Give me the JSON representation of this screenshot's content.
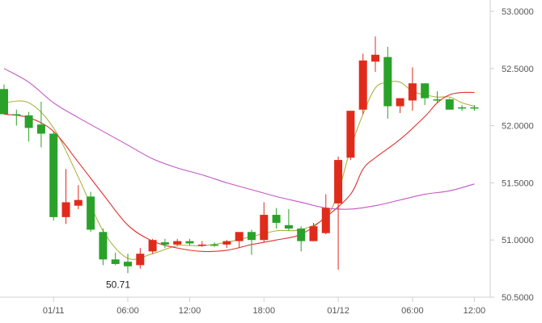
{
  "chart_data": {
    "type": "candlestick",
    "title": "",
    "xlabel": "",
    "ylabel": "",
    "ylim": [
      50.5,
      53.0
    ],
    "xlim": [
      0,
      37.5
    ],
    "grid": false,
    "colors": {
      "up": "#e02b1c",
      "down": "#2aa22a",
      "ma_short": "#aab341",
      "ma_mid": "#e3302f",
      "ma_long": "#c457c4",
      "axis": "#d0d0d0",
      "tick_text": "#555555"
    },
    "y_ticks": [
      "53.0000",
      "52.5000",
      "52.0000",
      "51.5000",
      "51.0000",
      "50.5000"
    ],
    "x_ticks": [
      {
        "label": "01/11",
        "x": 4
      },
      {
        "label": "06:00",
        "x": 10
      },
      {
        "label": "12:00",
        "x": 15
      },
      {
        "label": "18:00",
        "x": 21
      },
      {
        "label": "01/12",
        "x": 27
      },
      {
        "label": "06:00",
        "x": 33
      },
      {
        "label": "12:00",
        "x": 38
      }
    ],
    "candles": [
      {
        "x": 0,
        "open": 52.32,
        "high": 52.36,
        "low": 52.1,
        "close": 52.1
      },
      {
        "x": 1,
        "open": 52.1,
        "high": 52.14,
        "low": 52.0,
        "close": 52.09
      },
      {
        "x": 2,
        "open": 52.09,
        "high": 52.12,
        "low": 51.86,
        "close": 51.98
      },
      {
        "x": 3,
        "open": 52.01,
        "high": 52.21,
        "low": 51.81,
        "close": 51.93
      },
      {
        "x": 4,
        "open": 51.93,
        "high": 51.95,
        "low": 51.17,
        "close": 51.2
      },
      {
        "x": 5,
        "open": 51.2,
        "high": 51.62,
        "low": 51.14,
        "close": 51.33
      },
      {
        "x": 6,
        "open": 51.3,
        "high": 51.48,
        "low": 51.27,
        "close": 51.35
      },
      {
        "x": 7,
        "open": 51.38,
        "high": 51.42,
        "low": 51.07,
        "close": 51.09
      },
      {
        "x": 8,
        "open": 51.07,
        "high": 51.1,
        "low": 50.78,
        "close": 50.83
      },
      {
        "x": 9,
        "open": 50.83,
        "high": 50.89,
        "low": 50.78,
        "close": 50.79
      },
      {
        "x": 10,
        "open": 50.81,
        "high": 50.88,
        "low": 50.71,
        "close": 50.77
      },
      {
        "x": 11,
        "open": 50.78,
        "high": 50.93,
        "low": 50.75,
        "close": 50.88
      },
      {
        "x": 12,
        "open": 50.9,
        "high": 51.01,
        "low": 50.88,
        "close": 51.0
      },
      {
        "x": 13,
        "open": 50.98,
        "high": 51.01,
        "low": 50.93,
        "close": 50.96
      },
      {
        "x": 14,
        "open": 50.96,
        "high": 51.01,
        "low": 50.95,
        "close": 50.99
      },
      {
        "x": 15,
        "open": 50.99,
        "high": 51.01,
        "low": 50.95,
        "close": 50.97
      },
      {
        "x": 16,
        "open": 50.95,
        "high": 50.99,
        "low": 50.94,
        "close": 50.96
      },
      {
        "x": 17,
        "open": 50.96,
        "high": 50.98,
        "low": 50.94,
        "close": 50.95
      },
      {
        "x": 18,
        "open": 50.96,
        "high": 51.0,
        "low": 50.93,
        "close": 50.99
      },
      {
        "x": 19,
        "open": 50.99,
        "high": 51.06,
        "low": 50.93,
        "close": 51.07
      },
      {
        "x": 20,
        "open": 51.07,
        "high": 51.09,
        "low": 50.87,
        "close": 51.0
      },
      {
        "x": 21,
        "open": 51.0,
        "high": 51.33,
        "low": 50.98,
        "close": 51.22
      },
      {
        "x": 22,
        "open": 51.22,
        "high": 51.28,
        "low": 51.1,
        "close": 51.15
      },
      {
        "x": 23,
        "open": 51.13,
        "high": 51.27,
        "low": 51.08,
        "close": 51.1
      },
      {
        "x": 24,
        "open": 51.1,
        "high": 51.12,
        "low": 50.9,
        "close": 50.99
      },
      {
        "x": 25,
        "open": 50.99,
        "high": 51.15,
        "low": 50.99,
        "close": 51.12
      },
      {
        "x": 26,
        "open": 51.06,
        "high": 51.4,
        "low": 51.05,
        "close": 51.28
      },
      {
        "x": 27,
        "open": 51.32,
        "high": 51.73,
        "low": 50.74,
        "close": 51.7
      },
      {
        "x": 28,
        "open": 51.72,
        "high": 52.13,
        "low": 51.7,
        "close": 52.13
      },
      {
        "x": 29,
        "open": 52.14,
        "high": 52.63,
        "low": 52.1,
        "close": 52.57
      },
      {
        "x": 30,
        "open": 52.56,
        "high": 52.78,
        "low": 52.47,
        "close": 52.62
      },
      {
        "x": 31,
        "open": 52.6,
        "high": 52.69,
        "low": 52.06,
        "close": 52.17
      },
      {
        "x": 32,
        "open": 52.17,
        "high": 52.24,
        "low": 52.11,
        "close": 52.24
      },
      {
        "x": 33,
        "open": 52.22,
        "high": 52.51,
        "low": 52.13,
        "close": 52.37
      },
      {
        "x": 34,
        "open": 52.37,
        "high": 52.37,
        "low": 52.18,
        "close": 52.24
      },
      {
        "x": 35,
        "open": 52.23,
        "high": 52.3,
        "low": 52.2,
        "close": 52.22
      },
      {
        "x": 36,
        "open": 52.23,
        "high": 52.24,
        "low": 52.14,
        "close": 52.14
      },
      {
        "x": 37,
        "open": 52.16,
        "high": 52.18,
        "low": 52.13,
        "close": 52.15
      },
      {
        "x": 38,
        "open": 52.16,
        "high": 52.18,
        "low": 52.13,
        "close": 52.15
      }
    ],
    "moving_averages": [
      {
        "name": "",
        "color": "#aab341",
        "points": [
          [
            0,
            52.2
          ],
          [
            2,
            52.2
          ],
          [
            4,
            51.98
          ],
          [
            6,
            51.55
          ],
          [
            8,
            51.08
          ],
          [
            10,
            50.84
          ],
          [
            12,
            50.88
          ],
          [
            14,
            50.95
          ],
          [
            16,
            50.95
          ],
          [
            18,
            50.98
          ],
          [
            20,
            51.03
          ],
          [
            22,
            51.08
          ],
          [
            24,
            51.09
          ],
          [
            26,
            51.2
          ],
          [
            27,
            51.42
          ],
          [
            28,
            51.8
          ],
          [
            29,
            52.1
          ],
          [
            30,
            52.33
          ],
          [
            31,
            52.38
          ],
          [
            32,
            52.38
          ],
          [
            33,
            52.3
          ],
          [
            34,
            52.27
          ],
          [
            35,
            52.25
          ],
          [
            36,
            52.25
          ],
          [
            37,
            52.2
          ],
          [
            38,
            52.17
          ]
        ]
      },
      {
        "name": "",
        "color": "#e3302f",
        "points": [
          [
            0,
            52.1
          ],
          [
            2,
            52.07
          ],
          [
            4,
            51.95
          ],
          [
            6,
            51.68
          ],
          [
            8,
            51.4
          ],
          [
            10,
            51.13
          ],
          [
            12,
            50.99
          ],
          [
            14,
            50.93
          ],
          [
            16,
            50.9
          ],
          [
            18,
            50.91
          ],
          [
            20,
            50.96
          ],
          [
            22,
            51.0
          ],
          [
            24,
            51.05
          ],
          [
            26,
            51.2
          ],
          [
            28,
            51.4
          ],
          [
            29,
            51.62
          ],
          [
            30,
            51.72
          ],
          [
            32,
            51.88
          ],
          [
            34,
            52.08
          ],
          [
            35,
            52.2
          ],
          [
            36,
            52.27
          ],
          [
            37,
            52.29
          ],
          [
            38,
            52.29
          ]
        ]
      },
      {
        "name": "",
        "color": "#c457c4",
        "points": [
          [
            0,
            52.5
          ],
          [
            2,
            52.38
          ],
          [
            4,
            52.2
          ],
          [
            6,
            52.07
          ],
          [
            8,
            51.95
          ],
          [
            10,
            51.83
          ],
          [
            12,
            51.71
          ],
          [
            14,
            51.63
          ],
          [
            16,
            51.57
          ],
          [
            18,
            51.5
          ],
          [
            20,
            51.44
          ],
          [
            22,
            51.38
          ],
          [
            24,
            51.33
          ],
          [
            26,
            51.28
          ],
          [
            28,
            51.27
          ],
          [
            30,
            51.3
          ],
          [
            32,
            51.35
          ],
          [
            34,
            51.4
          ],
          [
            36,
            51.43
          ],
          [
            38,
            51.49
          ]
        ]
      }
    ],
    "annotations": [
      {
        "text": "50.71",
        "x": 10,
        "y": 50.71
      }
    ]
  }
}
